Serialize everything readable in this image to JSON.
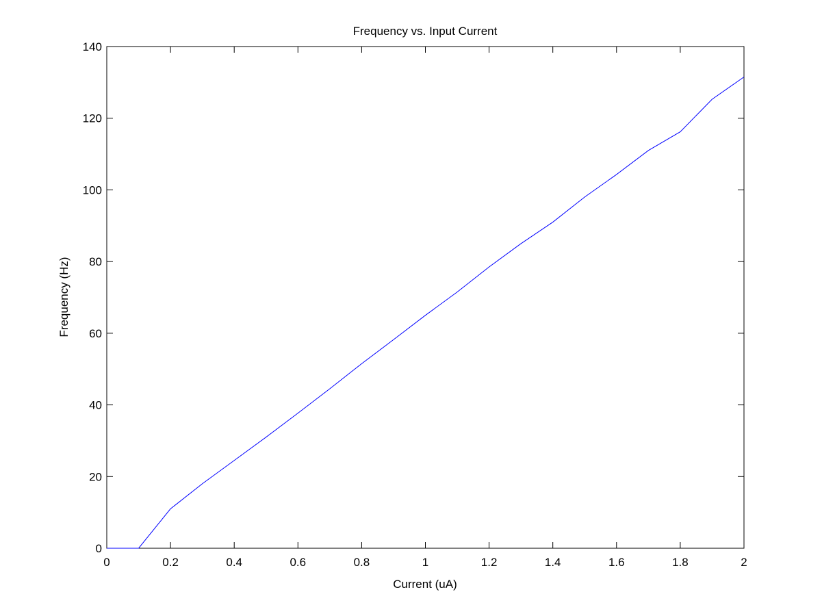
{
  "chart_data": {
    "type": "line",
    "title": "Frequency vs. Input Current",
    "xlabel": "Current (uA)",
    "ylabel": "Frequency (Hz)",
    "xlim": [
      0,
      2
    ],
    "ylim": [
      0,
      140
    ],
    "xticks": [
      0,
      0.2,
      0.4,
      0.6,
      0.8,
      1,
      1.2,
      1.4,
      1.6,
      1.8,
      2
    ],
    "xtick_labels": [
      "0",
      "0.2",
      "0.4",
      "0.6",
      "0.8",
      "1",
      "1.2",
      "1.4",
      "1.6",
      "1.8",
      "2"
    ],
    "yticks": [
      0,
      20,
      40,
      60,
      80,
      100,
      120,
      140
    ],
    "ytick_labels": [
      "0",
      "20",
      "40",
      "60",
      "80",
      "100",
      "120",
      "140"
    ],
    "grid": false,
    "series": [
      {
        "color": "#0000ff",
        "x": [
          0,
          0.05,
          0.1,
          0.2,
          0.3,
          0.4,
          0.5,
          0.6,
          0.7,
          0.8,
          0.9,
          1.0,
          1.1,
          1.2,
          1.3,
          1.4,
          1.5,
          1.6,
          1.7,
          1.8,
          1.9,
          2.0
        ],
        "y": [
          0,
          0,
          0,
          11,
          18,
          24.5,
          31,
          37.7,
          44.5,
          51.5,
          58.2,
          65,
          71.5,
          78.5,
          85,
          91,
          98,
          104.3,
          111,
          116.2,
          125.3,
          131.5
        ]
      }
    ]
  }
}
